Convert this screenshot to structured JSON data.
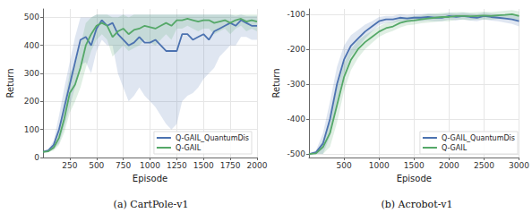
{
  "chart_data": [
    {
      "type": "line",
      "title": "(a) CartPole-v1",
      "x_label": "Episode",
      "y_label": "Return",
      "x": [
        0,
        50,
        100,
        150,
        200,
        250,
        300,
        350,
        400,
        450,
        500,
        550,
        600,
        650,
        700,
        750,
        800,
        850,
        900,
        950,
        1000,
        1050,
        1100,
        1150,
        1200,
        1250,
        1300,
        1350,
        1400,
        1450,
        1500,
        1550,
        1600,
        1650,
        1700,
        1750,
        1800,
        1850,
        1900,
        1950,
        2000
      ],
      "xlim": [
        0,
        2000
      ],
      "xticks": [
        250,
        500,
        750,
        1000,
        1250,
        1500,
        1750,
        2000
      ],
      "ylim": [
        0,
        530
      ],
      "yticks": [
        0,
        100,
        200,
        300,
        400,
        500
      ],
      "grid": true,
      "legend": "lower right",
      "series": [
        {
          "name": "Q-GAIL_QuantumDis",
          "color": "#4c72b0",
          "values": [
            20,
            25,
            45,
            100,
            180,
            260,
            340,
            420,
            430,
            400,
            460,
            490,
            470,
            480,
            440,
            420,
            400,
            410,
            430,
            410,
            410,
            420,
            400,
            380,
            380,
            380,
            440,
            440,
            420,
            430,
            440,
            420,
            450,
            460,
            470,
            480,
            470,
            490,
            480,
            470,
            470
          ],
          "lower": [
            18,
            20,
            30,
            50,
            110,
            180,
            250,
            330,
            340,
            300,
            380,
            420,
            400,
            400,
            300,
            250,
            200,
            220,
            250,
            220,
            200,
            180,
            150,
            120,
            100,
            120,
            200,
            220,
            230,
            250,
            280,
            300,
            320,
            360,
            380,
            400,
            400,
            430,
            430,
            420,
            420
          ],
          "upper": [
            22,
            30,
            60,
            150,
            250,
            340,
            430,
            500,
            500,
            500,
            510,
            510,
            510,
            510,
            510,
            510,
            510,
            510,
            510,
            510,
            510,
            510,
            510,
            510,
            510,
            510,
            510,
            510,
            510,
            510,
            510,
            510,
            510,
            510,
            510,
            510,
            505,
            510,
            505,
            505,
            505
          ]
        },
        {
          "name": "Q-GAIL",
          "color": "#55a868",
          "values": [
            20,
            22,
            35,
            70,
            140,
            230,
            260,
            320,
            400,
            440,
            470,
            480,
            470,
            430,
            450,
            460,
            440,
            455,
            460,
            470,
            465,
            460,
            470,
            480,
            470,
            490,
            490,
            495,
            490,
            485,
            490,
            490,
            480,
            485,
            490,
            480,
            490,
            495,
            485,
            490,
            485
          ],
          "lower": [
            18,
            20,
            25,
            45,
            90,
            160,
            200,
            250,
            320,
            380,
            420,
            440,
            420,
            360,
            380,
            400,
            380,
            390,
            400,
            420,
            410,
            400,
            420,
            440,
            420,
            460,
            460,
            470,
            460,
            450,
            460,
            460,
            440,
            450,
            460,
            440,
            460,
            470,
            450,
            460,
            450
          ],
          "upper": [
            22,
            25,
            45,
            100,
            200,
            300,
            330,
            400,
            480,
            500,
            510,
            510,
            510,
            500,
            500,
            510,
            500,
            510,
            510,
            510,
            510,
            510,
            510,
            510,
            510,
            510,
            510,
            510,
            510,
            510,
            510,
            510,
            510,
            510,
            510,
            510,
            510,
            510,
            510,
            510,
            510
          ]
        }
      ]
    },
    {
      "type": "line",
      "title": "(b) Acrobot-v1",
      "x_label": "Episode",
      "y_label": "Return",
      "x": [
        0,
        100,
        200,
        300,
        400,
        500,
        600,
        700,
        800,
        900,
        1000,
        1100,
        1200,
        1300,
        1400,
        1500,
        1600,
        1700,
        1800,
        1900,
        2000,
        2100,
        2200,
        2300,
        2400,
        2500,
        2600,
        2700,
        2800,
        2900,
        3000
      ],
      "xlim": [
        0,
        3000
      ],
      "xticks": [
        500,
        1000,
        1500,
        2000,
        2500,
        3000
      ],
      "ylim": [
        -510,
        -85
      ],
      "yticks": [
        -500,
        -400,
        -300,
        -200,
        -100
      ],
      "grid": true,
      "legend": "lower right",
      "series": [
        {
          "name": "Q-GAIL_QuantumDis",
          "color": "#4c72b0",
          "values": [
            -500,
            -495,
            -470,
            -400,
            -300,
            -230,
            -190,
            -170,
            -150,
            -135,
            -120,
            -115,
            -115,
            -110,
            -112,
            -110,
            -110,
            -108,
            -110,
            -110,
            -105,
            -108,
            -105,
            -108,
            -110,
            -105,
            -108,
            -110,
            -112,
            -115,
            -120
          ],
          "lower": [
            -500,
            -500,
            -500,
            -450,
            -350,
            -270,
            -220,
            -195,
            -170,
            -150,
            -132,
            -125,
            -125,
            -120,
            -122,
            -120,
            -120,
            -118,
            -120,
            -120,
            -115,
            -118,
            -115,
            -118,
            -120,
            -115,
            -118,
            -120,
            -124,
            -128,
            -135
          ],
          "upper": [
            -500,
            -490,
            -440,
            -350,
            -250,
            -190,
            -160,
            -145,
            -130,
            -120,
            -108,
            -105,
            -105,
            -100,
            -102,
            -100,
            -100,
            -98,
            -100,
            -100,
            -95,
            -98,
            -95,
            -98,
            -100,
            -95,
            -98,
            -100,
            -100,
            -102,
            -105
          ]
        },
        {
          "name": "Q-GAIL",
          "color": "#55a868",
          "values": [
            -500,
            -498,
            -480,
            -440,
            -360,
            -280,
            -230,
            -200,
            -180,
            -165,
            -150,
            -140,
            -135,
            -125,
            -120,
            -118,
            -115,
            -112,
            -110,
            -108,
            -108,
            -105,
            -105,
            -106,
            -105,
            -104,
            -105,
            -103,
            -102,
            -100,
            -105
          ],
          "lower": [
            -500,
            -500,
            -500,
            -480,
            -410,
            -320,
            -260,
            -225,
            -200,
            -182,
            -165,
            -155,
            -148,
            -138,
            -132,
            -130,
            -126,
            -124,
            -122,
            -120,
            -120,
            -116,
            -116,
            -117,
            -116,
            -115,
            -116,
            -114,
            -114,
            -112,
            -118
          ],
          "upper": [
            -500,
            -495,
            -460,
            -400,
            -310,
            -240,
            -200,
            -175,
            -160,
            -148,
            -135,
            -125,
            -122,
            -112,
            -108,
            -106,
            -104,
            -100,
            -98,
            -96,
            -96,
            -94,
            -94,
            -95,
            -94,
            -93,
            -94,
            -92,
            -90,
            -88,
            -92
          ]
        }
      ]
    }
  ]
}
